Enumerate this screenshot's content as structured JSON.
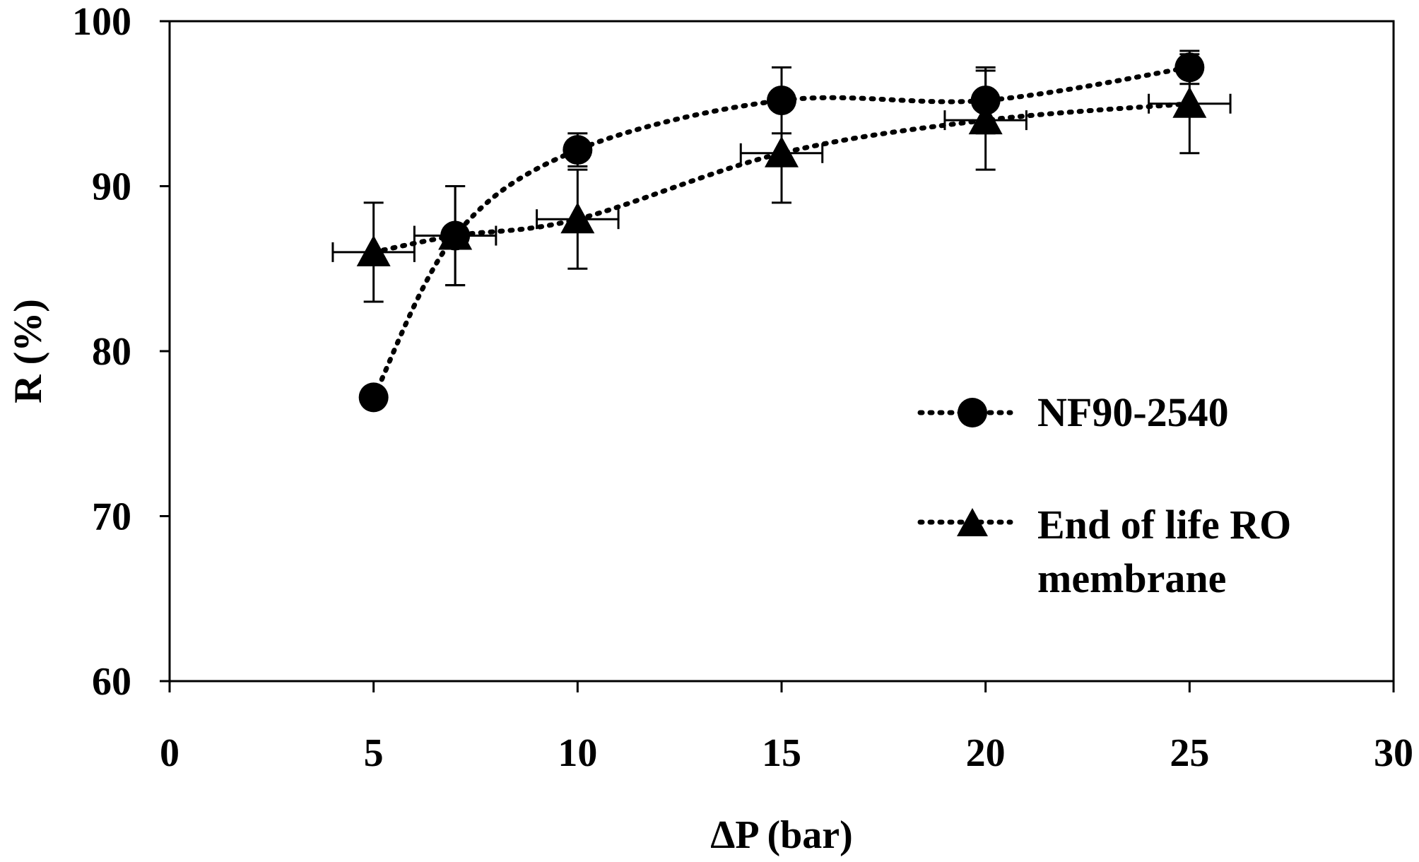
{
  "chart_data": {
    "type": "scatter",
    "title": "",
    "xlabel": "ΔP (bar)",
    "ylabel": "R (%)",
    "xlim": [
      0,
      30
    ],
    "ylim": [
      60,
      100
    ],
    "xticks": [
      0,
      5,
      10,
      15,
      20,
      25,
      30
    ],
    "yticks": [
      60,
      70,
      80,
      90,
      100
    ],
    "grid": false,
    "legend_position": "center-right",
    "series": [
      {
        "name": "NF90-2540",
        "marker": "circle",
        "line_style": "dotted",
        "x": [
          5,
          7,
          10,
          15,
          20,
          25
        ],
        "y": [
          77.2,
          87,
          92.2,
          95.2,
          95.2,
          97.2
        ],
        "y_err": [
          0,
          3,
          1,
          2,
          2,
          1
        ],
        "x_err": [
          0,
          0,
          0,
          0,
          0,
          0
        ]
      },
      {
        "name": "End of life RO membrane",
        "marker": "triangle",
        "line_style": "dotted",
        "x": [
          5,
          7,
          10,
          15,
          20,
          25
        ],
        "y": [
          86,
          87,
          88,
          92,
          94,
          95
        ],
        "y_err": [
          3,
          3,
          3,
          3,
          3,
          3
        ],
        "x_err": [
          1,
          1,
          1,
          1,
          1,
          1
        ]
      }
    ],
    "legend": {
      "entry_1": "NF90-2540",
      "entry_2_line1": "End of life RO",
      "entry_2_line2": "membrane"
    }
  }
}
